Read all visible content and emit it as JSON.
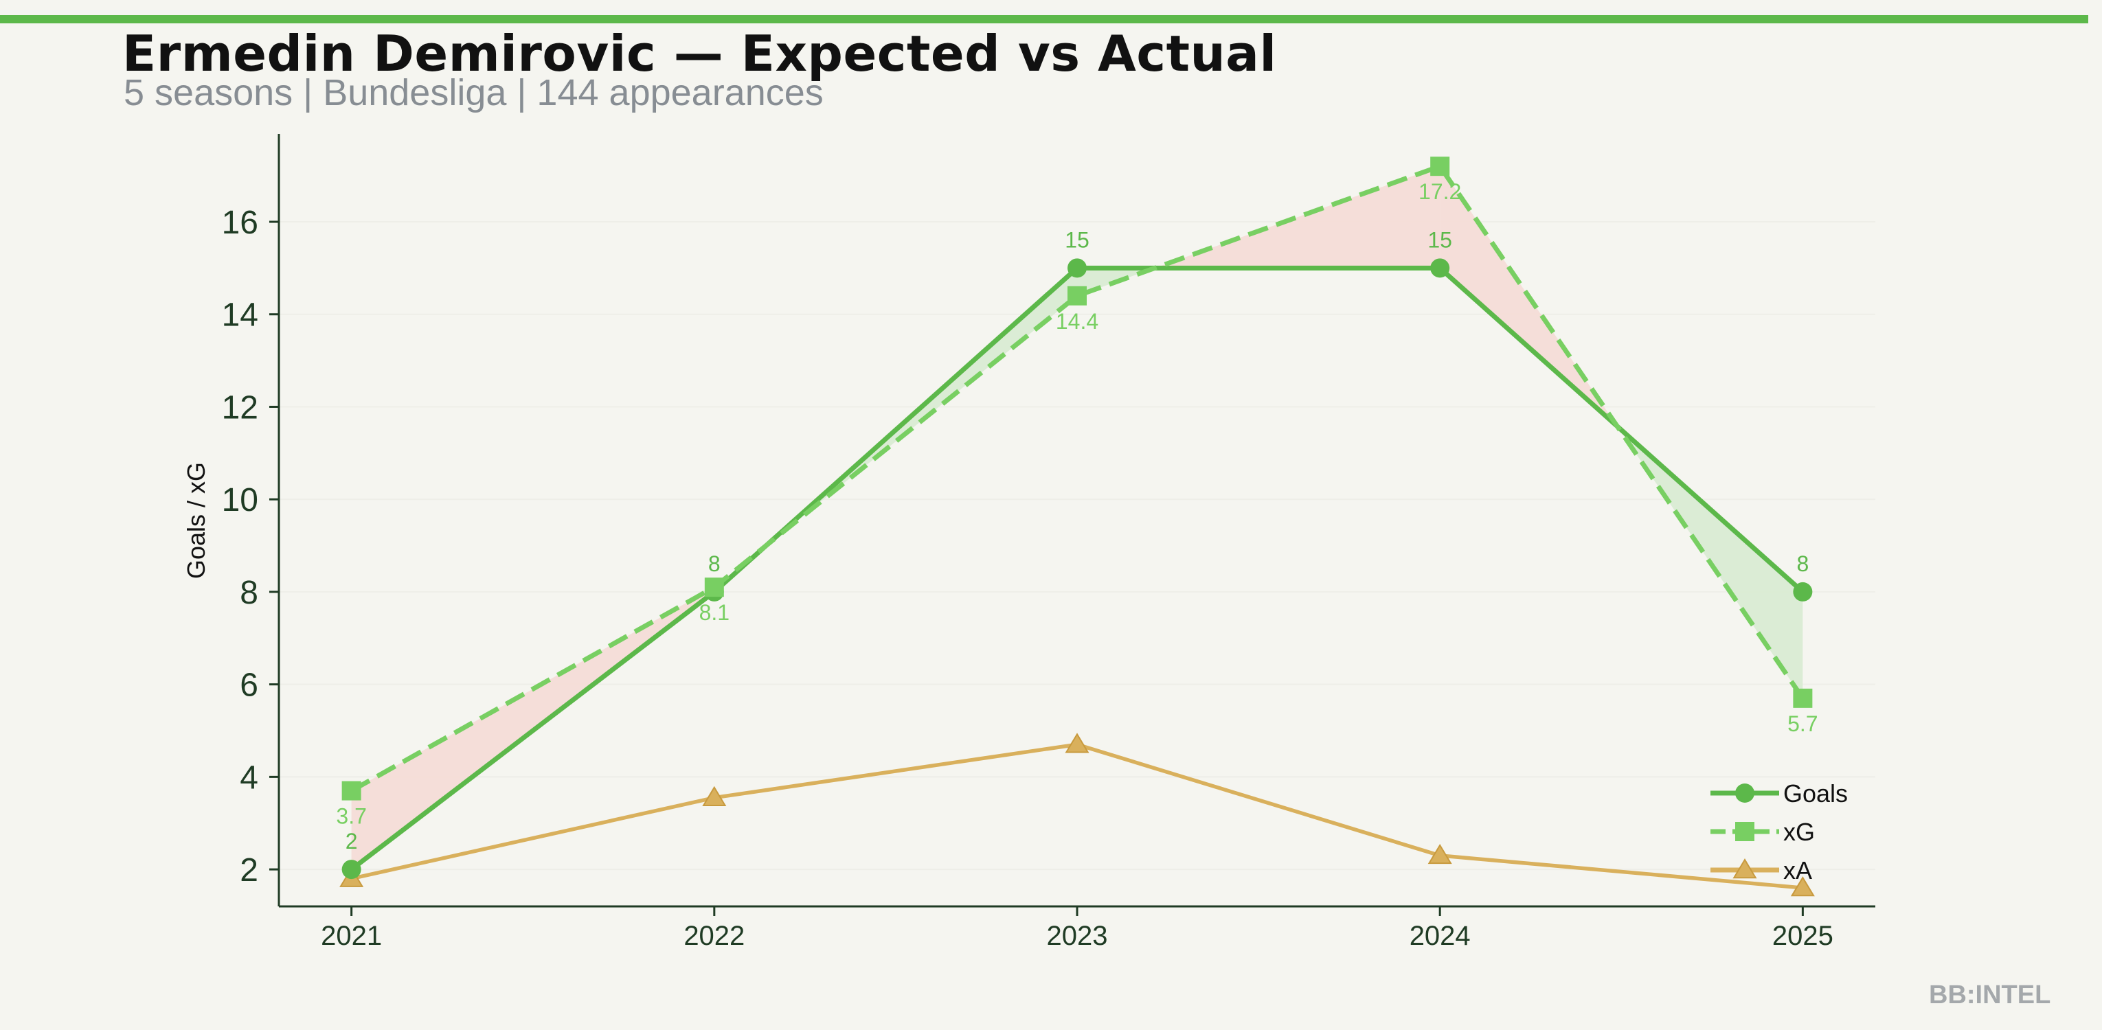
{
  "header": {
    "title": "Ermedin Demirovic — Expected vs Actual",
    "subtitle": "5 seasons | Bundesliga | 144 appearances"
  },
  "watermark": "BB:INTEL",
  "colors": {
    "accent": "#5cb84a",
    "goals": "#5cb84a",
    "xg": "#78cf62",
    "xa": "#d9b05c",
    "overperform_fill": "#d8ebd2",
    "underperform_fill": "#f5dbd6",
    "axis": "#1f3b24",
    "grid": "#eeeee8",
    "background": "#f5f5f0"
  },
  "chart_data": {
    "type": "line",
    "xlabel": "",
    "ylabel": "Goals / xG",
    "x": [
      "2021",
      "2022",
      "2023",
      "2024",
      "2025"
    ],
    "xlim": [
      -0.2,
      4.2
    ],
    "ylim": [
      1.2,
      17.9
    ],
    "yticks": [
      2,
      4,
      6,
      8,
      10,
      12,
      14,
      16
    ],
    "grid": "y",
    "legend_position": "bottom-right",
    "series": [
      {
        "name": "Goals",
        "values": [
          2,
          8,
          15,
          15,
          8
        ],
        "marker": "circle",
        "style": "solid",
        "labels": [
          "2",
          "8",
          "15",
          "15",
          "8"
        ]
      },
      {
        "name": "xG",
        "values": [
          3.7,
          8.1,
          14.4,
          17.2,
          5.7
        ],
        "marker": "square",
        "style": "dashed",
        "labels": [
          "3.7",
          "8.1",
          "14.4",
          "17.2",
          "5.7"
        ]
      },
      {
        "name": "xA",
        "values": [
          1.8,
          3.55,
          4.7,
          2.3,
          1.6
        ],
        "marker": "triangle",
        "style": "solid"
      }
    ]
  }
}
